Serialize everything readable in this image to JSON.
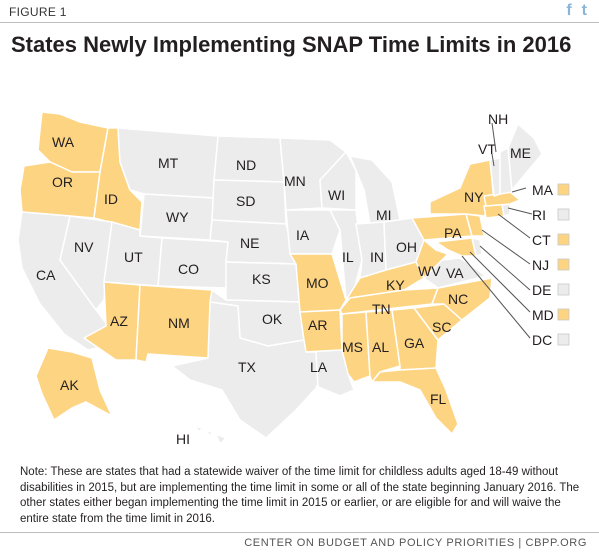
{
  "header": {
    "figure_label": "FIGURE 1",
    "social": [
      {
        "icon": "facebook-icon",
        "glyph": "f"
      },
      {
        "icon": "twitter-icon",
        "glyph": "t"
      }
    ],
    "title": "States Newly Implementing SNAP Time Limits in 2016"
  },
  "map": {
    "categories": {
      "implementing_2016": "#fdd481",
      "other": "#ececec"
    },
    "state_labels": [
      "WA",
      "OR",
      "ID",
      "MT",
      "ND",
      "MN",
      "WI",
      "MI",
      "NY",
      "VT",
      "NH",
      "ME",
      "SD",
      "WY",
      "IA",
      "CA",
      "NV",
      "UT",
      "CO",
      "NE",
      "IL",
      "IN",
      "OH",
      "PA",
      "KS",
      "MO",
      "KY",
      "WV",
      "VA",
      "AZ",
      "NM",
      "OK",
      "AR",
      "TN",
      "NC",
      "SC",
      "TX",
      "LA",
      "MS",
      "AL",
      "GA",
      "FL",
      "AK",
      "HI"
    ],
    "callouts": [
      {
        "label": "MA",
        "implementing_2016": true
      },
      {
        "label": "RI",
        "implementing_2016": false
      },
      {
        "label": "CT",
        "implementing_2016": true
      },
      {
        "label": "NJ",
        "implementing_2016": true
      },
      {
        "label": "DE",
        "implementing_2016": false
      },
      {
        "label": "MD",
        "implementing_2016": true
      },
      {
        "label": "DC",
        "implementing_2016": false
      }
    ]
  },
  "note": "Note: These are states that had a statewide waiver of the time limit for childless adults aged 18-49 without disabilities in 2015, but are implementing the time limit in some or all of the state beginning January 2016. The other states either began implementing the time limit in 2015 or earlier, or are eligible for and will waive the entire state from the time limit in 2016.",
  "footer": "CENTER ON BUDGET AND POLICY PRIORITIES | CBPP.ORG"
}
